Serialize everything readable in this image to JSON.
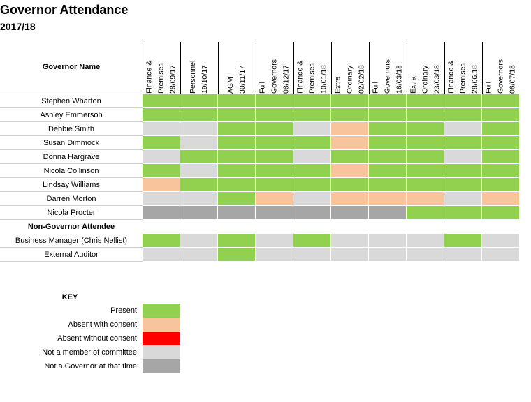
{
  "title": "Governor Attendance",
  "subtitle": "2017/18",
  "table": {
    "name_header": "Governor Name",
    "columns": [
      [
        "Finance &",
        "Premises",
        "28/09/17"
      ],
      [
        "Personnel",
        "19/10/17"
      ],
      [
        "AGM",
        "30/11/17"
      ],
      [
        "Full",
        "Governors",
        "08/12/17"
      ],
      [
        "Finance &",
        "Premises",
        "10/01/18"
      ],
      [
        "Extra",
        "Ordinary",
        "02/02/18"
      ],
      [
        "Full",
        "Governors",
        "16/03/18"
      ],
      [
        "Extra",
        "Ordinary",
        "23/03/18"
      ],
      [
        "Finance &",
        "Premises",
        "28/06.18"
      ],
      [
        "Full",
        "Governors",
        "06/07/18"
      ]
    ],
    "rows": [
      {
        "name": "Stephen Wharton",
        "status": [
          "P",
          "P",
          "P",
          "P",
          "P",
          "P",
          "P",
          "P",
          "P",
          "P"
        ]
      },
      {
        "name": "Ashley Emmerson",
        "status": [
          "P",
          "P",
          "P",
          "P",
          "P",
          "P",
          "P",
          "P",
          "P",
          "P"
        ]
      },
      {
        "name": "Debbie Smith",
        "status": [
          "N",
          "N",
          "P",
          "P",
          "N",
          "A",
          "P",
          "P",
          "N",
          "P"
        ]
      },
      {
        "name": "Susan Dimmock",
        "status": [
          "P",
          "N",
          "P",
          "P",
          "P",
          "A",
          "P",
          "P",
          "P",
          "P"
        ]
      },
      {
        "name": "Donna Hargrave",
        "status": [
          "N",
          "P",
          "P",
          "P",
          "N",
          "P",
          "P",
          "P",
          "N",
          "P"
        ]
      },
      {
        "name": "Nicola Collinson",
        "status": [
          "P",
          "N",
          "P",
          "P",
          "P",
          "A",
          "P",
          "P",
          "P",
          "P"
        ]
      },
      {
        "name": "Lindsay Williams",
        "status": [
          "A",
          "P",
          "P",
          "P",
          "P",
          "P",
          "P",
          "P",
          "P",
          "P"
        ]
      },
      {
        "name": "Darren Morton",
        "status": [
          "N",
          "N",
          "P",
          "A",
          "N",
          "A",
          "A",
          "A",
          "N",
          "A"
        ]
      },
      {
        "name": "Nicola Procter",
        "status": [
          "G",
          "G",
          "G",
          "G",
          "G",
          "G",
          "G",
          "P",
          "P",
          "P"
        ]
      },
      {
        "name": "Non-Governor Attendee",
        "heading": true
      },
      {
        "name": "Business Manager (Chris Nellist)",
        "status": [
          "P",
          "N",
          "P",
          "N",
          "P",
          "N",
          "N",
          "N",
          "P",
          "N"
        ]
      },
      {
        "name": "External Auditor",
        "status": [
          "N",
          "N",
          "P",
          "N",
          "N",
          "N",
          "N",
          "N",
          "N",
          "N"
        ]
      }
    ]
  },
  "key": {
    "title": "KEY",
    "items": [
      {
        "code": "P",
        "label": "Present"
      },
      {
        "code": "A",
        "label": "Absent with consent"
      },
      {
        "code": "X",
        "label": "Absent without consent"
      },
      {
        "code": "N",
        "label": "Not a member of committee"
      },
      {
        "code": "G",
        "label": "Not a Governor at that time"
      }
    ]
  },
  "colors": {
    "P": "#92d050",
    "A": "#f8c49b",
    "X": "#ff0000",
    "N": "#d9d9d9",
    "G": "#a6a6a6"
  }
}
